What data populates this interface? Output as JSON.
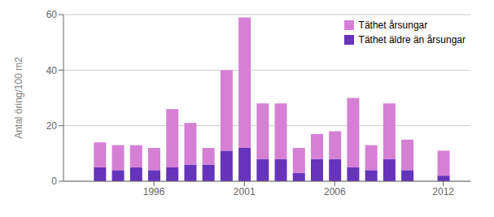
{
  "chart_data": {
    "type": "bar",
    "x": [
      1993,
      1994,
      1995,
      1996,
      1997,
      1998,
      1999,
      2000,
      2001,
      2002,
      2003,
      2004,
      2005,
      2006,
      2007,
      2008,
      2009,
      2010,
      2012
    ],
    "series": [
      {
        "name": "Täthet äldre än årsungar",
        "color": "#6633bb",
        "values": [
          5,
          4,
          5,
          4,
          5,
          6,
          6,
          11,
          12,
          8,
          8,
          3,
          8,
          8,
          5,
          4,
          8,
          4,
          2
        ]
      },
      {
        "name": "Täthet årsungar",
        "color": "#d580d5",
        "values": [
          9,
          9,
          8,
          8,
          21,
          15,
          6,
          29,
          47,
          20,
          20,
          9,
          9,
          10,
          25,
          9,
          20,
          11,
          9
        ]
      }
    ],
    "stacked": true,
    "ylabel": "Antal öring/100 m2",
    "xlim": [
      1991.0,
      2013.5
    ],
    "xticks": [
      1996,
      2001,
      2006,
      2012
    ],
    "ylim": [
      0,
      60
    ],
    "yticks": [
      0,
      20,
      40,
      60
    ],
    "grid": true,
    "legend": "upper right"
  }
}
